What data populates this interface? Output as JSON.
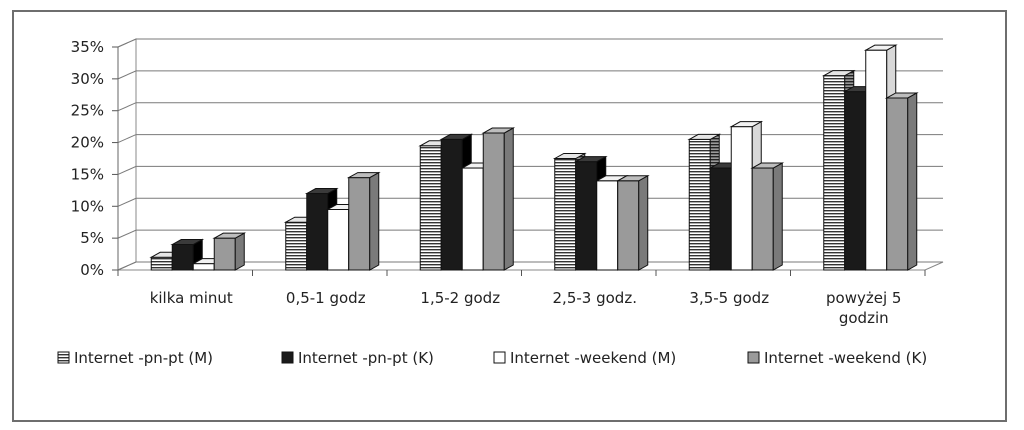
{
  "chart_data": {
    "type": "bar",
    "title": "",
    "xlabel": "",
    "ylabel": "",
    "ylim": [
      0,
      35
    ],
    "y_ticks": [
      "0%",
      "5%",
      "10%",
      "15%",
      "20%",
      "25%",
      "30%",
      "35%"
    ],
    "categories": [
      [
        "kilka minut"
      ],
      [
        "0,5-1 godz"
      ],
      [
        "1,5-2 godz"
      ],
      [
        "2,5-3 godz."
      ],
      [
        "3,5-5 godz"
      ],
      [
        "powyżej 5",
        "godzin"
      ]
    ],
    "series": [
      {
        "name": "Internet -pn-pt (M)",
        "values": [
          2,
          7.5,
          19.5,
          17.5,
          20.5,
          30.5
        ],
        "pattern": "horizontal-stripes"
      },
      {
        "name": "Internet -pn-pt (K)",
        "values": [
          4,
          12,
          20.5,
          17,
          16,
          28
        ],
        "color": "#1a1a1a"
      },
      {
        "name": "Internet -weekend (M)",
        "values": [
          1,
          9.5,
          16,
          14,
          22.5,
          34.5
        ],
        "color": "#ffffff"
      },
      {
        "name": "Internet -weekend (K)",
        "values": [
          5,
          14.5,
          21.5,
          14,
          16,
          27
        ],
        "color": "#9a9a9a"
      }
    ],
    "grid": true,
    "legend_position": "bottom"
  }
}
